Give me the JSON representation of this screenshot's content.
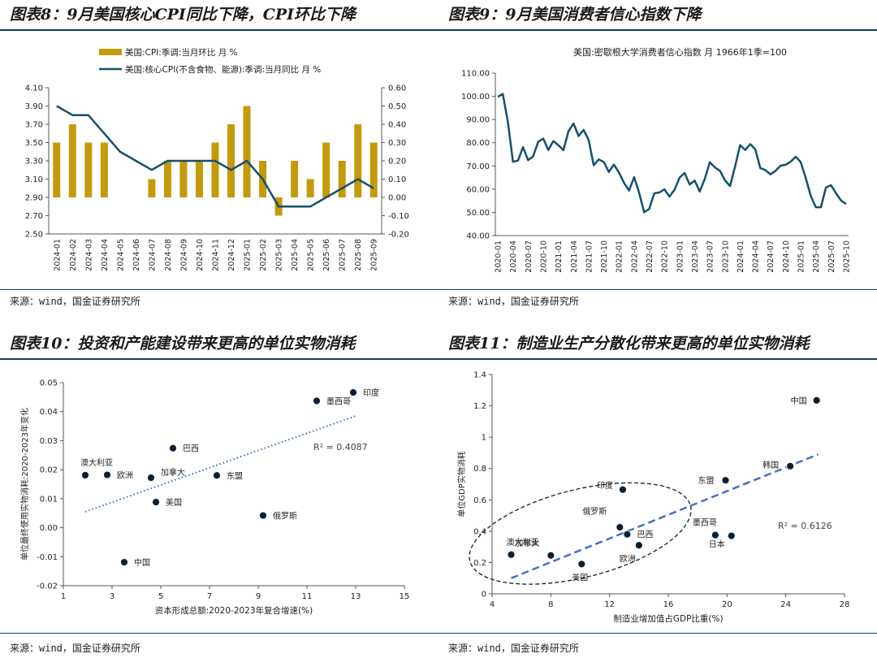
{
  "colors": {
    "gold": "#c49a0a",
    "navy": "#14506f",
    "dark": "#0a2a45",
    "blue": "#3a6fc0",
    "rule": "#0f3f66"
  },
  "panels": [
    {
      "title": "图表8：9月美国核心CPI同比下降，CPI环比下降",
      "source": "来源：wind，国金证券研究所"
    },
    {
      "title": "图表9：9月美国消费者信心指数下降",
      "source": "来源：wind，国金证券研究所"
    },
    {
      "title": "图表10：投资和产能建设带来更高的单位实物消耗",
      "source": "来源：wind，国金证券研究所"
    },
    {
      "title": "图表11：制造业生产分散化带来更高的单位实物消耗",
      "source": "来源：wind，国金证券研究所"
    }
  ],
  "chart_data": [
    {
      "type": "bar+line",
      "legend": [
        "美国:CPI:季调:当月环比 月 %",
        "美国:核心CPI(不含食物、能源):季调:当月同比 月 %"
      ],
      "categories": [
        "2024-01",
        "2024-02",
        "2024-03",
        "2024-04",
        "2024-05",
        "2024-06",
        "2024-07",
        "2024-08",
        "2024-09",
        "2024-10",
        "2024-11",
        "2024-12",
        "2025-01",
        "2025-02",
        "2025-03",
        "2025-04",
        "2025-05",
        "2025-06",
        "2025-07",
        "2025-08",
        "2025-09"
      ],
      "bar_values": [
        0.3,
        0.4,
        0.3,
        0.3,
        0.0,
        0.0,
        0.1,
        0.2,
        0.2,
        0.2,
        0.3,
        0.4,
        0.5,
        0.2,
        -0.1,
        0.2,
        0.1,
        0.3,
        0.2,
        0.4,
        0.3
      ],
      "line_values": [
        3.9,
        3.8,
        3.8,
        3.6,
        3.4,
        3.3,
        3.2,
        3.3,
        3.3,
        3.3,
        3.3,
        3.2,
        3.3,
        3.1,
        2.8,
        2.8,
        2.8,
        2.9,
        3.0,
        3.1,
        3.0
      ],
      "left_axis": {
        "min": 2.5,
        "max": 4.1,
        "ticks": [
          "4.10",
          "3.90",
          "3.70",
          "3.50",
          "3.30",
          "3.10",
          "2.90",
          "2.70",
          "2.50"
        ]
      },
      "right_axis": {
        "min": -0.2,
        "max": 0.6,
        "ticks": [
          "0.60",
          "0.50",
          "0.40",
          "0.30",
          "0.20",
          "0.10",
          "0.00",
          "-0.10",
          "-0.20"
        ]
      }
    },
    {
      "type": "line",
      "title": "美国:密歇根大学消费者信心指数 月 1966年1季=100",
      "ylim": [
        40,
        110
      ],
      "yticks": [
        "110.00",
        "100.00",
        "90.00",
        "80.00",
        "70.00",
        "60.00",
        "50.00",
        "40.00"
      ],
      "xticks": [
        "2020-01",
        "2020-04",
        "2020-07",
        "2020-10",
        "2021-01",
        "2021-04",
        "2021-07",
        "2021-10",
        "2022-01",
        "2022-04",
        "2022-07",
        "2022-10",
        "2023-01",
        "2023-04",
        "2023-07",
        "2023-10",
        "2024-01",
        "2024-04",
        "2024-07",
        "2024-10",
        "2025-01",
        "2025-04",
        "2025-07",
        "2025-10"
      ],
      "values": [
        99.8,
        101.0,
        89.1,
        71.8,
        72.3,
        78.1,
        72.5,
        74.1,
        80.4,
        81.8,
        76.9,
        80.7,
        79.0,
        76.8,
        84.9,
        88.3,
        82.9,
        85.5,
        81.2,
        70.3,
        72.8,
        71.7,
        67.4,
        70.6,
        67.2,
        62.8,
        59.4,
        65.2,
        58.4,
        50.0,
        51.5,
        58.2,
        58.6,
        59.9,
        56.8,
        59.7,
        64.9,
        67.0,
        62.0,
        63.7,
        59.0,
        64.4,
        71.6,
        69.4,
        67.9,
        63.8,
        61.3,
        69.7,
        79.0,
        76.9,
        79.4,
        77.2,
        69.1,
        68.2,
        66.4,
        67.9,
        70.1,
        70.5,
        71.8,
        74.0,
        71.7,
        64.7,
        57.0,
        52.2,
        52.2,
        60.7,
        61.7,
        58.2,
        55.1,
        53.6
      ]
    },
    {
      "type": "scatter",
      "xlabel": "资本形成总额:2020-2023年复合增速(%)",
      "ylabel": "单位最终使用实物消耗:2020-2023年变化",
      "xlim": [
        1,
        15
      ],
      "ylim": [
        -0.02,
        0.05
      ],
      "xticks": [
        "1",
        "3",
        "5",
        "7",
        "9",
        "11",
        "13",
        "15"
      ],
      "yticks": [
        "0.05",
        "0.04",
        "0.03",
        "0.02",
        "0.01",
        "0.00",
        "-0.01",
        "-0.02"
      ],
      "r2": "R² = 0.4087",
      "trend": {
        "x0": 1.9,
        "y0": 0.0055,
        "x1": 13.0,
        "y1": 0.0385
      },
      "points": [
        {
          "label": "印度",
          "x": 12.9,
          "y": 0.0466
        },
        {
          "label": "墨西哥",
          "x": 11.4,
          "y": 0.0437
        },
        {
          "label": "巴西",
          "x": 5.5,
          "y": 0.0274
        },
        {
          "label": "澳大利亚",
          "x": 1.9,
          "y": 0.0181
        },
        {
          "label": "欧洲",
          "x": 2.8,
          "y": 0.0182
        },
        {
          "label": "加拿大",
          "x": 4.6,
          "y": 0.0172
        },
        {
          "label": "东盟",
          "x": 7.3,
          "y": 0.018
        },
        {
          "label": "美国",
          "x": 4.8,
          "y": 0.0088
        },
        {
          "label": "俄罗斯",
          "x": 9.2,
          "y": 0.0042
        },
        {
          "label": "中国",
          "x": 3.5,
          "y": -0.0119
        }
      ]
    },
    {
      "type": "scatter",
      "xlabel": "制造业增加值占GDP比重(%)",
      "ylabel": "单位GDP实物消耗",
      "xlim": [
        4,
        28
      ],
      "ylim": [
        0,
        1.4
      ],
      "xticks": [
        "4",
        "8",
        "12",
        "16",
        "20",
        "24",
        "28"
      ],
      "yticks": [
        "1.4",
        "1.2",
        "1",
        "0.8",
        "0.6",
        "0.4",
        "0.2",
        "0"
      ],
      "r2": "R² = 0.6126",
      "trend": {
        "x0": 5.3,
        "y0": 0.1,
        "x1": 26.2,
        "y1": 0.89
      },
      "points": [
        {
          "label": "中国",
          "x": 26.1,
          "y": 1.235
        },
        {
          "label": "韩国",
          "x": 24.3,
          "y": 0.815
        },
        {
          "label": "东盟",
          "x": 19.9,
          "y": 0.725
        },
        {
          "label": "印度",
          "x": 12.9,
          "y": 0.665
        },
        {
          "label": "俄罗斯",
          "x": 12.7,
          "y": 0.425
        },
        {
          "label": "巴西",
          "x": 13.2,
          "y": 0.38
        },
        {
          "label": "墨西哥",
          "x": 19.2,
          "y": 0.375
        },
        {
          "label": "日本",
          "x": 20.3,
          "y": 0.37
        },
        {
          "label": "欧洲",
          "x": 14.0,
          "y": 0.31
        },
        {
          "label": "澳大利亚",
          "x": 5.3,
          "y": 0.25
        },
        {
          "label": "加拿大",
          "x": 8.0,
          "y": 0.245
        },
        {
          "label": "美国",
          "x": 10.1,
          "y": 0.19
        }
      ]
    }
  ]
}
